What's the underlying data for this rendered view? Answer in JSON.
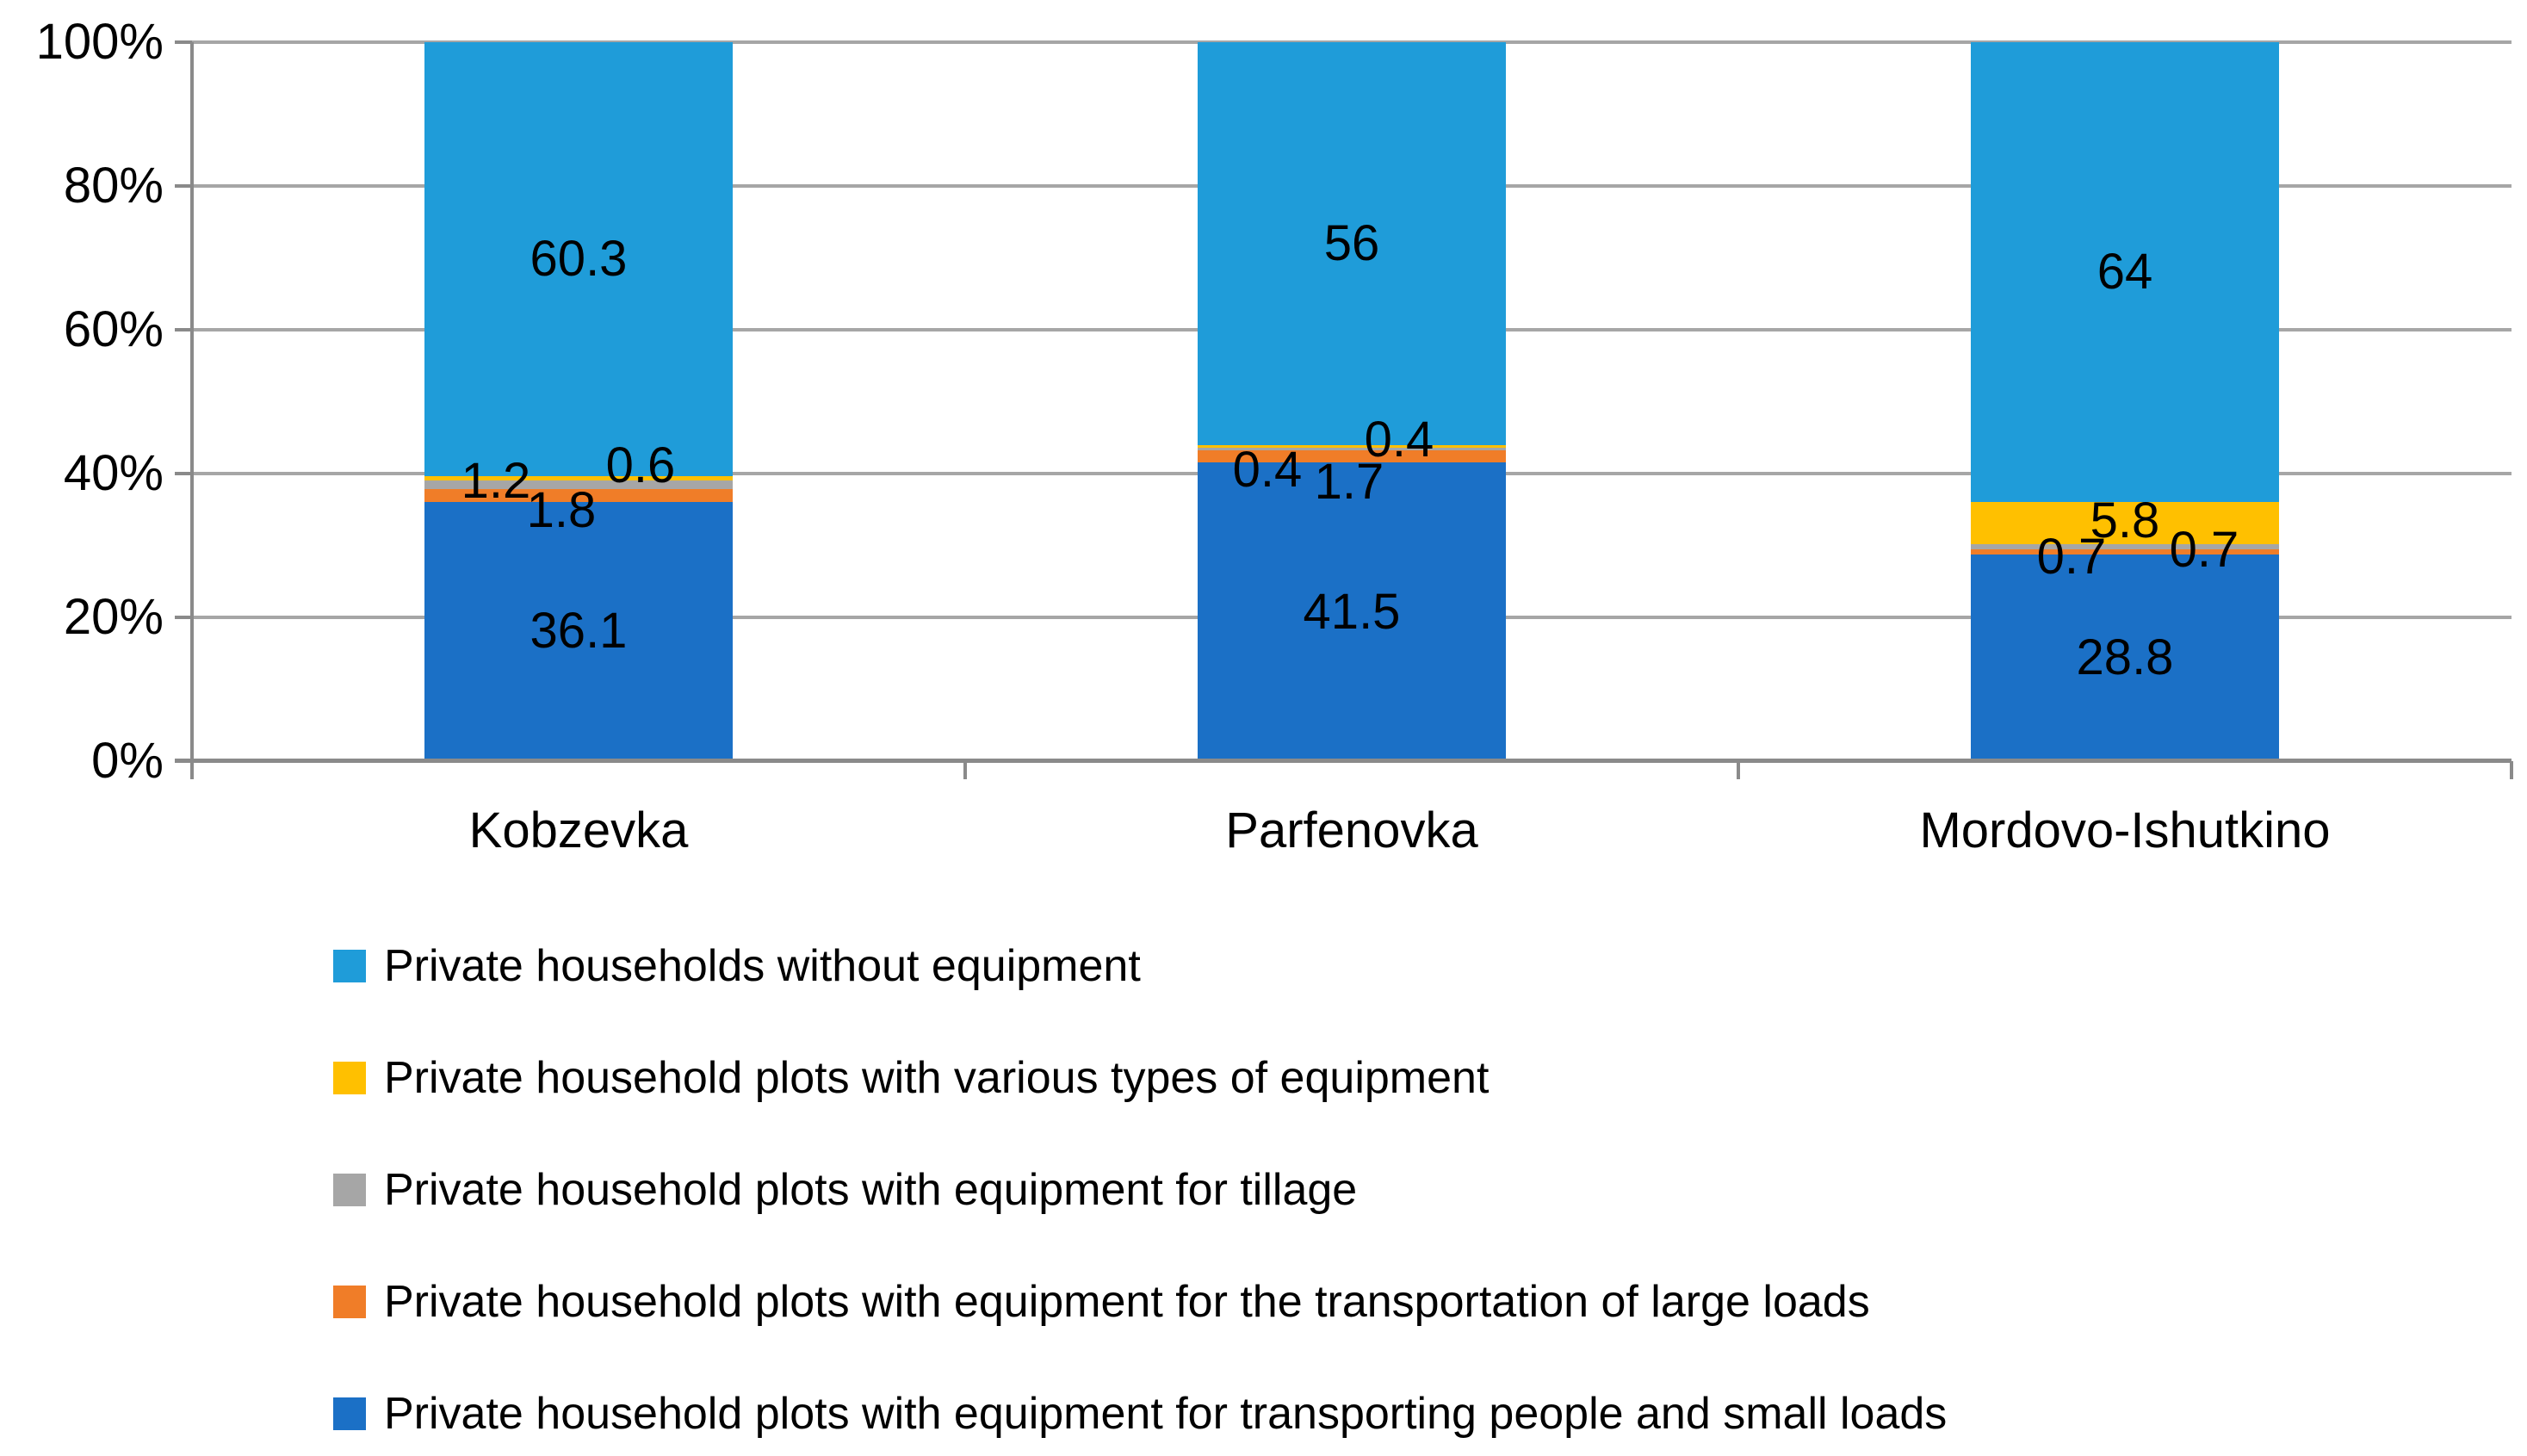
{
  "chart_data": {
    "type": "bar",
    "variant": "stacked-100-percent-column",
    "title": "",
    "xlabel": "",
    "ylabel": "",
    "categories": [
      "Kobzevka",
      "Parfenovka",
      "Mordovo-Ishutkino"
    ],
    "series": [
      {
        "name": "Private household plots with equipment for transporting people and small loads",
        "color": "#1B70C6",
        "values": [
          36.1,
          41.5,
          28.8
        ],
        "labels": [
          "36.1",
          "41.5",
          "28.8"
        ],
        "label_offsets": [
          [
            0,
            0
          ],
          [
            0,
            0
          ],
          [
            0,
            0
          ]
        ]
      },
      {
        "name": "Private household plots with equipment for the transportation of large loads",
        "color": "#F07D28",
        "values": [
          1.8,
          1.7,
          0.7
        ],
        "labels": [
          "1.8",
          "1.7",
          "0.7"
        ],
        "label_offsets": [
          [
            -20,
            18
          ],
          [
            -3,
            30
          ],
          [
            -62,
            6
          ]
        ]
      },
      {
        "name": "Private household plots with equipment for tillage",
        "color": "#A6A6A6",
        "values": [
          1.2,
          0.4,
          0.7
        ],
        "labels": [
          "1.2",
          "0.4",
          "0.7"
        ],
        "label_offsets": [
          [
            -96,
            -4
          ],
          [
            -98,
            24
          ],
          [
            92,
            4
          ]
        ]
      },
      {
        "name": "Private household plots with various types of equipment",
        "color": "#FFC000",
        "values": [
          0.6,
          0.4,
          5.8
        ],
        "labels": [
          "0.6",
          "0.4",
          "5.8"
        ],
        "label_offsets": [
          [
            72,
            -14
          ],
          [
            55,
            -7
          ],
          [
            0,
            -3
          ]
        ]
      },
      {
        "name": "Private households without equipment",
        "color": "#1F9CD9",
        "values": [
          60.3,
          56,
          64
        ],
        "labels": [
          "60.3",
          "56",
          "64"
        ],
        "label_offsets": [
          [
            0,
            0
          ],
          [
            0,
            0
          ],
          [
            0,
            0
          ]
        ]
      }
    ],
    "y_axis": {
      "min": 0,
      "max": 100,
      "tick_step": 20,
      "ticks": [
        "0%",
        "20%",
        "40%",
        "60%",
        "80%",
        "100%"
      ]
    },
    "grid": true,
    "legend": {
      "position": "bottom-left",
      "order": "top-segment-first"
    }
  },
  "colors": {
    "background": "#FFFFFF",
    "gridline": "#A6A6A6",
    "axis": "#8A8A8A",
    "text": "#000000"
  }
}
